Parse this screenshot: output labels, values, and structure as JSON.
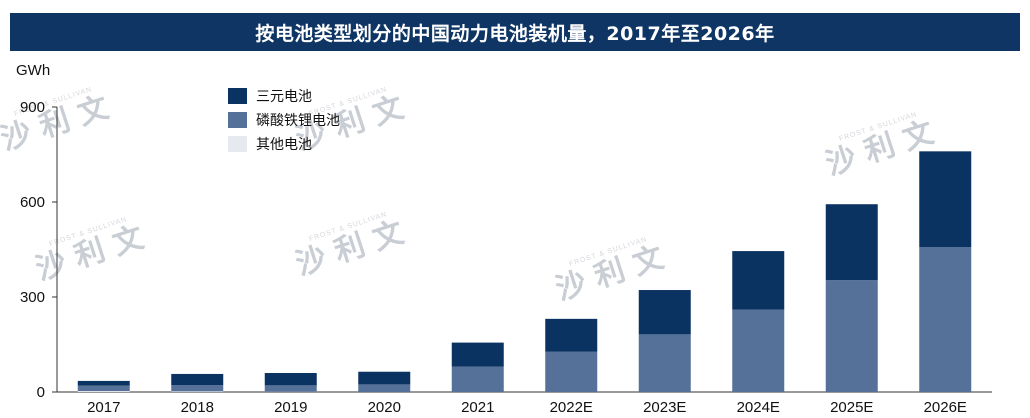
{
  "title": "按电池类型划分的中国动力电池装机量，2017年至2026年",
  "watermark": {
    "cn": "沙 利 文",
    "en": "FROST & SULLIVAN"
  },
  "chart_data": {
    "type": "bar",
    "stacked": true,
    "title": "按电池类型划分的中国动力电池装机量，2017年至2026年",
    "unit": "GWh",
    "ylim": [
      0,
      900
    ],
    "yticks": [
      0,
      300,
      600,
      900
    ],
    "categories": [
      "2017",
      "2018",
      "2019",
      "2020",
      "2021",
      "2022E",
      "2023E",
      "2024E",
      "2025E",
      "2026E"
    ],
    "series": [
      {
        "name": "其他电池",
        "color": "#e6e9ee",
        "values": [
          3,
          2,
          1,
          0,
          0,
          0,
          0,
          0,
          0,
          0
        ]
      },
      {
        "name": "磷酸铁锂电池",
        "color": "#557199",
        "values": [
          17,
          20,
          20,
          24,
          80,
          127,
          182,
          260,
          353,
          457
        ]
      },
      {
        "name": "三元电池",
        "color": "#0b3361",
        "values": [
          15,
          35,
          39,
          40,
          76,
          104,
          140,
          185,
          240,
          303
        ]
      }
    ],
    "legend_order": [
      "三元电池",
      "磷酸铁锂电池",
      "其他电池"
    ],
    "legend_position": "top-left",
    "grid": false
  }
}
